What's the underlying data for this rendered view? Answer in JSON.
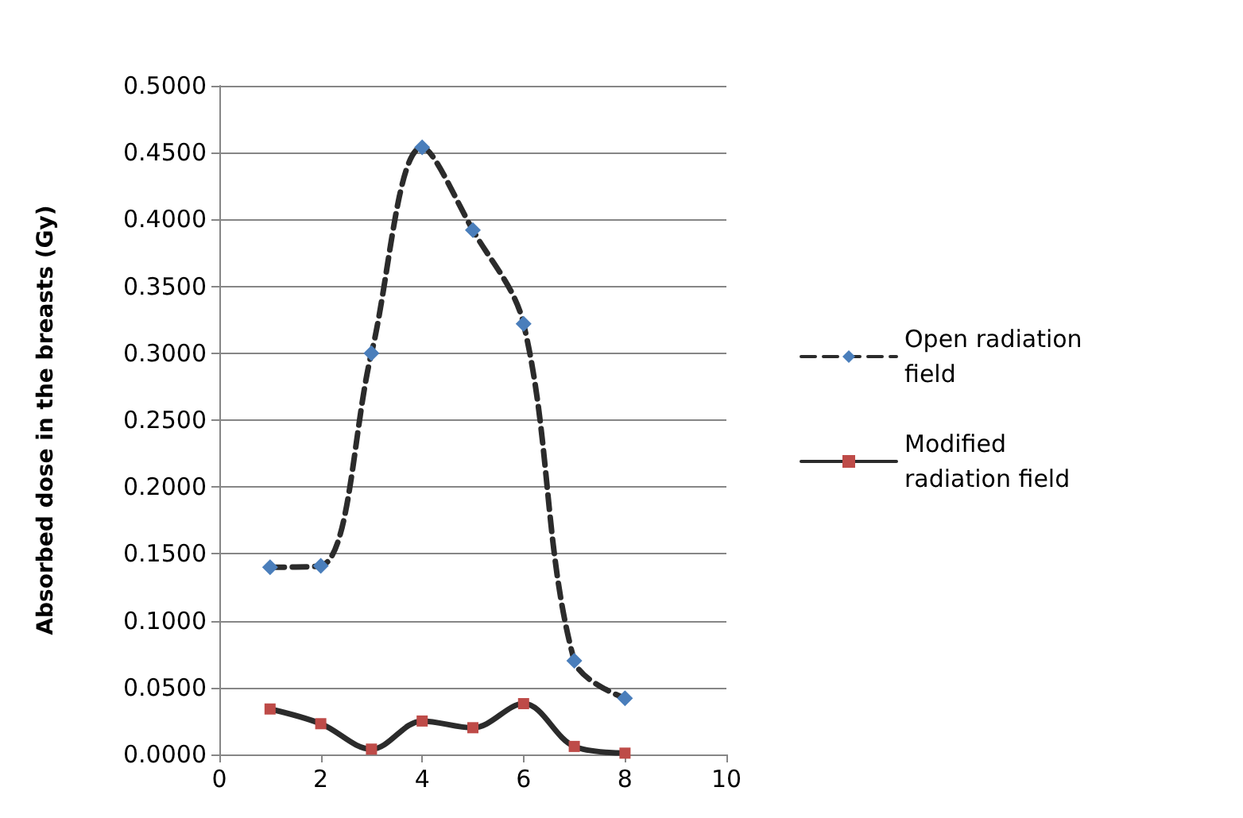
{
  "chart_data": {
    "type": "line",
    "ylabel": "Absorbed dose in the breasts (Gy)",
    "x": [
      1,
      2,
      3,
      4,
      5,
      6,
      7,
      8
    ],
    "series": [
      {
        "name": "Open radiation field",
        "color": "#4a7ebb",
        "marker": "diamond",
        "line_style": "dashed",
        "values": [
          0.14,
          0.141,
          0.3,
          0.454,
          0.392,
          0.322,
          0.07,
          0.042
        ]
      },
      {
        "name": "Modified radiation field",
        "color": "#be4b48",
        "marker": "square",
        "line_style": "solid",
        "values": [
          0.034,
          0.023,
          0.004,
          0.025,
          0.02,
          0.038,
          0.006,
          0.001
        ]
      }
    ],
    "xlim": [
      0,
      10
    ],
    "xticks": [
      0,
      2,
      4,
      6,
      8,
      10
    ],
    "ylim": [
      0,
      0.5
    ],
    "yticks": [
      {
        "value": 0,
        "label": "0.0000"
      },
      {
        "value": 0.05,
        "label": "0.0500"
      },
      {
        "value": 0.1,
        "label": "0.1000"
      },
      {
        "value": 0.15,
        "label": "0.1500"
      },
      {
        "value": 0.2,
        "label": "0.2000"
      },
      {
        "value": 0.25,
        "label": "0.2500"
      },
      {
        "value": 0.3,
        "label": "0.3000"
      },
      {
        "value": 0.35,
        "label": "0.3500"
      },
      {
        "value": 0.4,
        "label": "0.4000"
      },
      {
        "value": 0.45,
        "label": "0.4500"
      },
      {
        "value": 0.5,
        "label": "0.5000"
      }
    ],
    "grid": "y",
    "legend": "right"
  }
}
